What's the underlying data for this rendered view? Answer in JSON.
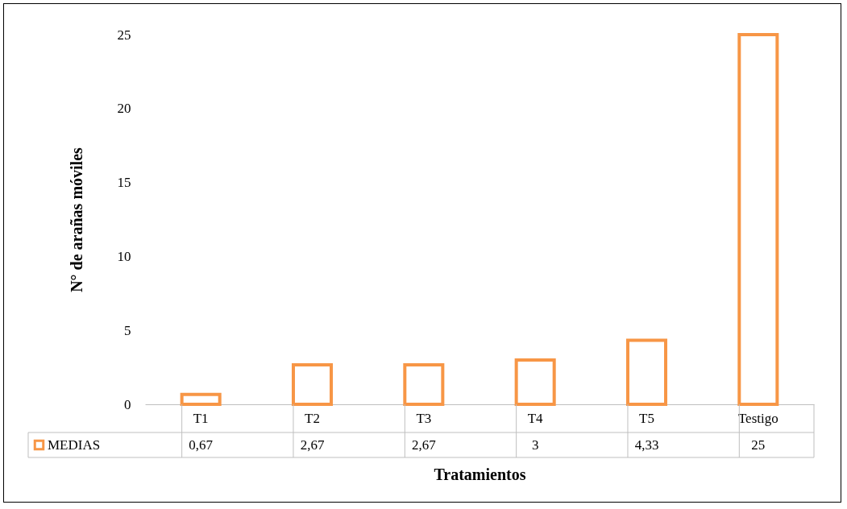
{
  "chart_data": {
    "type": "bar",
    "xlabel": "Tratamientos",
    "ylabel": "N° de arañas móviles",
    "categories": [
      "T1",
      "T2",
      "T3",
      "T4",
      "T5",
      "Testigo"
    ],
    "series": [
      {
        "name": "MEDIAS",
        "color": "#f79646",
        "values": [
          0.67,
          2.67,
          2.67,
          3,
          4.33,
          25
        ],
        "value_labels": [
          "0,67",
          "2,67",
          "2,67",
          "3",
          "4,33",
          "25"
        ]
      }
    ],
    "ylim": [
      0,
      25
    ],
    "yticks": [
      0,
      5,
      10,
      15,
      20,
      25
    ],
    "grid": false,
    "legend": "bottom left"
  }
}
